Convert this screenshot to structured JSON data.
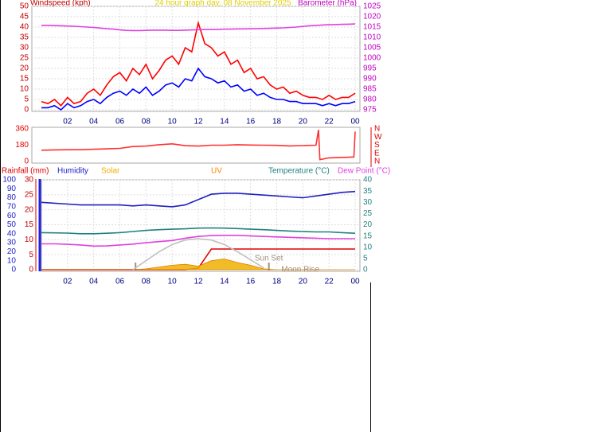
{
  "chart_data": [
    {
      "type": "line",
      "title": "24 hour graph day, 08 November 2025",
      "y_label": "Windspeed (kph)",
      "y2_label": "Barometer (hPa)",
      "x": [
        0,
        0.5,
        1,
        1.5,
        2,
        2.5,
        3,
        3.5,
        4,
        4.5,
        5,
        5.5,
        6,
        6.5,
        7,
        7.5,
        8,
        8.5,
        9,
        9.5,
        10,
        10.5,
        11,
        11.5,
        12,
        12.5,
        13,
        13.5,
        14,
        14.5,
        15,
        15.5,
        16,
        16.5,
        17,
        17.5,
        18,
        18.5,
        19,
        19.5,
        20,
        20.5,
        21,
        21.5,
        22,
        22.5,
        23,
        23.5,
        24
      ],
      "xlim": [
        0,
        24
      ],
      "xticks": [
        {
          "value": 2,
          "label": "02"
        },
        {
          "value": 4,
          "label": "04"
        },
        {
          "value": 6,
          "label": "06"
        },
        {
          "value": 8,
          "label": "08"
        },
        10,
        12,
        14,
        16,
        18,
        20,
        22,
        {
          "value": 24,
          "label": "00"
        }
      ],
      "ylim": [
        0,
        50
      ],
      "yticks": [
        0,
        5,
        10,
        15,
        20,
        25,
        30,
        35,
        40,
        45,
        50
      ],
      "y2lim": [
        975,
        1025
      ],
      "y2ticks": [
        975,
        980,
        985,
        990,
        995,
        1000,
        1005,
        1010,
        1015,
        1020,
        1025
      ],
      "grid": true,
      "series": [
        {
          "color": "#ff0000",
          "values": [
            4,
            3,
            5,
            2,
            6,
            3,
            4,
            8,
            10,
            7,
            12,
            16,
            18,
            14,
            20,
            17,
            22,
            15,
            19,
            24,
            26,
            22,
            30,
            28,
            42,
            32,
            30,
            26,
            28,
            22,
            24,
            18,
            20,
            15,
            16,
            12,
            10,
            11,
            8,
            9,
            7,
            6,
            6,
            5,
            7,
            5,
            6,
            6,
            8
          ]
        },
        {
          "color": "#0000ff",
          "values": [
            1,
            1,
            2,
            0,
            3,
            1,
            2,
            4,
            5,
            3,
            6,
            8,
            9,
            7,
            10,
            8,
            11,
            7,
            9,
            12,
            13,
            11,
            15,
            14,
            20,
            16,
            15,
            13,
            14,
            11,
            12,
            9,
            10,
            7,
            8,
            6,
            5,
            5,
            4,
            4,
            3,
            3,
            3,
            2,
            3,
            2,
            3,
            3,
            4
          ]
        },
        {
          "color": "#e040e0",
          "axis": "y2",
          "values": [
            1015.8,
            1015.8,
            1015.7,
            1015.6,
            1015.5,
            1015.4,
            1015.2,
            1015.0,
            1014.8,
            1014.5,
            1014.2,
            1014.0,
            1013.6,
            1013.4,
            1013.3,
            1013.3,
            1013.4,
            1013.5,
            1013.5,
            1013.5,
            1013.4,
            1013.4,
            1013.5,
            1013.6,
            1013.7,
            1013.8,
            1013.8,
            1013.9,
            1014.0,
            1014.0,
            1014.1,
            1014.1,
            1014.2,
            1014.2,
            1014.3,
            1014.4,
            1014.5,
            1014.6,
            1014.8,
            1015.0,
            1015.3,
            1015.6,
            1015.8,
            1016.0,
            1016.1,
            1016.2,
            1016.3,
            1016.4,
            1016.5
          ]
        }
      ]
    },
    {
      "type": "line",
      "x": [
        0,
        1,
        2,
        3,
        4,
        5,
        6,
        7,
        8,
        9,
        10,
        11,
        12,
        13,
        14,
        15,
        16,
        17,
        18,
        19,
        20,
        21,
        21.2,
        21.3,
        22,
        23,
        23.9,
        24
      ],
      "xlim": [
        0,
        24
      ],
      "ylim": [
        0,
        360
      ],
      "yticks": [
        0,
        180,
        360
      ],
      "y2lim": [
        0,
        360
      ],
      "y2ticks": [
        {
          "value": 0,
          "label": "N"
        },
        {
          "value": 90,
          "label": "E"
        },
        {
          "value": 180,
          "label": "S"
        },
        {
          "value": 270,
          "label": "W"
        },
        {
          "value": 360,
          "label": "N"
        }
      ],
      "series": [
        {
          "color": "#ff3030",
          "values": [
            125,
            128,
            130,
            130,
            135,
            140,
            145,
            165,
            170,
            185,
            195,
            175,
            170,
            180,
            180,
            185,
            182,
            180,
            178,
            172,
            176,
            180,
            350,
            20,
            40,
            45,
            50,
            330
          ]
        }
      ]
    },
    {
      "type": "line",
      "uv_label": "UV",
      "x": [
        0,
        1,
        2,
        3,
        4,
        5,
        6,
        7,
        8,
        9,
        10,
        11,
        12,
        13,
        14,
        15,
        16,
        17,
        18,
        19,
        20,
        21,
        22,
        23,
        24
      ],
      "xlim": [
        0,
        24
      ],
      "xticks": [
        {
          "value": 2,
          "label": "02"
        },
        {
          "value": 4,
          "label": "04"
        },
        {
          "value": 6,
          "label": "06"
        },
        {
          "value": 8,
          "label": "08"
        },
        10,
        12,
        14,
        16,
        18,
        20,
        22,
        {
          "value": 24,
          "label": "00"
        }
      ],
      "ylim": [
        0,
        30
      ],
      "yticks": [
        0,
        5,
        10,
        15,
        20,
        25,
        30
      ],
      "y2lim": [
        0,
        40
      ],
      "y2ticks": [
        0,
        5,
        10,
        15,
        20,
        25,
        30,
        35,
        40
      ],
      "y3lim": [
        0,
        100
      ],
      "y3ticks": [
        0,
        10,
        20,
        30,
        40,
        50,
        60,
        70,
        80,
        90,
        100
      ],
      "grid": true,
      "markers": [
        {
          "x": 7.2
        },
        {
          "x": 17.4,
          "label": "Sun Set"
        },
        {
          "x": 17.5,
          "label": "Moon Rise"
        }
      ],
      "series": [
        {
          "name": "Rainfall (mm)",
          "color": "#e00000",
          "values": [
            0,
            0,
            0,
            0,
            0,
            0,
            0,
            0,
            0,
            0,
            0,
            0,
            0.5,
            6.9,
            6.9,
            6.9,
            6.9,
            6.9,
            6.9,
            6.9,
            6.9,
            6.9,
            6.9,
            6.9,
            6.9
          ]
        },
        {
          "name": "Humidity",
          "color": "#2020c0",
          "axis": "y3",
          "values": [
            75,
            74,
            73,
            72,
            72,
            72,
            72,
            71,
            72,
            71,
            70,
            72,
            78,
            84,
            85,
            85,
            84,
            83,
            82,
            81,
            80,
            82,
            84,
            86,
            87
          ]
        },
        {
          "name": "Solar",
          "color": "#f0b000",
          "axis": "y3",
          "area": true,
          "values": [
            0,
            0,
            0,
            0,
            0,
            0,
            0,
            0,
            1,
            3,
            5,
            6,
            4,
            10,
            12,
            8,
            5,
            1,
            0,
            0,
            0,
            0,
            0,
            0,
            0
          ]
        },
        {
          "name": "Temperature (°C)",
          "color": "#208080",
          "axis": "y2",
          "values": [
            16.5,
            16.4,
            16.3,
            16,
            16,
            16.2,
            16.5,
            17,
            17.5,
            17.8,
            18,
            18.2,
            18.5,
            18.6,
            18.5,
            18.3,
            18,
            17.8,
            17.5,
            17.2,
            17,
            16.8,
            16.8,
            16.5,
            16.2
          ]
        },
        {
          "name": "Dew Point (°C)",
          "color": "#e040e0",
          "axis": "y2",
          "values": [
            11.5,
            11.5,
            11.3,
            11.0,
            10.5,
            10.6,
            11,
            11.4,
            12,
            12.5,
            13,
            14,
            14.8,
            15.2,
            15.3,
            15.3,
            15,
            14.8,
            14.6,
            14.4,
            14.2,
            14,
            13.8,
            13.8,
            13.8
          ]
        },
        {
          "color": "#c0c0c0",
          "axis": "y3",
          "values": [
            null,
            null,
            null,
            null,
            null,
            null,
            null,
            0,
            10,
            20,
            28,
            33,
            34.5,
            33,
            28,
            20,
            11,
            2,
            null,
            null,
            null,
            null,
            null,
            null,
            null
          ]
        }
      ]
    }
  ]
}
